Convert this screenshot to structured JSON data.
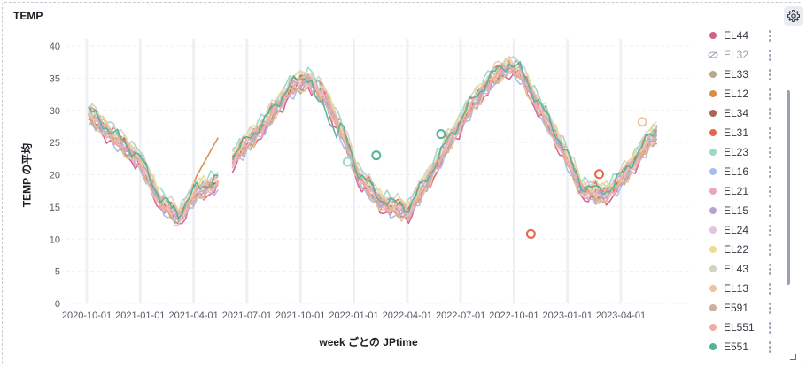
{
  "panel": {
    "title": "TEMP",
    "settings_icon": "gear-icon"
  },
  "chart_data": {
    "type": "line",
    "xlabel": "week ごとの JPtime",
    "ylabel": "TEMP の平均",
    "ylim": [
      0,
      40
    ],
    "yticks": [
      0,
      5,
      10,
      15,
      20,
      25,
      30,
      35,
      40
    ],
    "xticks": [
      "2020-10-01",
      "2021-01-01",
      "2021-04-01",
      "2021-07-01",
      "2021-10-01",
      "2022-01-01",
      "2022-04-01",
      "2022-07-01",
      "2022-10-01",
      "2023-01-01",
      "2023-04-01"
    ],
    "grid": true,
    "legend_position": "right",
    "series": [
      {
        "name": "EL44",
        "color": "#d36086",
        "hidden": false
      },
      {
        "name": "EL32",
        "color": "#98a2b3",
        "hidden": true
      },
      {
        "name": "EL33",
        "color": "#b9a888",
        "hidden": false
      },
      {
        "name": "EL12",
        "color": "#da8b45",
        "hidden": false
      },
      {
        "name": "EL34",
        "color": "#aa6556",
        "hidden": false
      },
      {
        "name": "EL31",
        "color": "#e7664c",
        "hidden": false
      },
      {
        "name": "EL23",
        "color": "#9ad9c3",
        "hidden": false
      },
      {
        "name": "EL16",
        "color": "#a9bde8",
        "hidden": false
      },
      {
        "name": "EL21",
        "color": "#e9a4bf",
        "hidden": false
      },
      {
        "name": "EL15",
        "color": "#b8a1d6",
        "hidden": false
      },
      {
        "name": "EL24",
        "color": "#e6c3dc",
        "hidden": false
      },
      {
        "name": "EL22",
        "color": "#ebdc8f",
        "hidden": false
      },
      {
        "name": "EL43",
        "color": "#d6d3c3",
        "hidden": false
      },
      {
        "name": "EL13",
        "color": "#eec49d",
        "hidden": false
      },
      {
        "name": "E591",
        "color": "#d1ae9f",
        "hidden": false
      },
      {
        "name": "EL551",
        "color": "#f1ada1",
        "hidden": false
      },
      {
        "name": "E551",
        "color": "#54b399",
        "hidden": false
      }
    ]
  }
}
